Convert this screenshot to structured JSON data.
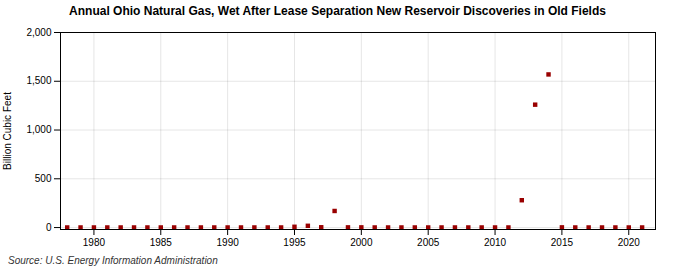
{
  "chart_data": {
    "type": "scatter",
    "title": "Annual Ohio Natural Gas, Wet After Lease Separation New Reservoir Discoveries in Old Fields",
    "ylabel": "Billion Cubic Feet",
    "caption": "Source: U.S. Energy Information Administration",
    "color": "#990000",
    "marker": "square",
    "grid": true,
    "xlim": [
      1977.5,
      2022
    ],
    "ylim": [
      -20,
      2000
    ],
    "xticks": [
      {
        "value": 1980,
        "label": "1980"
      },
      {
        "value": 1985,
        "label": "1985"
      },
      {
        "value": 1990,
        "label": "1990"
      },
      {
        "value": 1995,
        "label": "1995"
      },
      {
        "value": 2000,
        "label": "2000"
      },
      {
        "value": 2005,
        "label": "2005"
      },
      {
        "value": 2010,
        "label": "2010"
      },
      {
        "value": 2015,
        "label": "2015"
      },
      {
        "value": 2020,
        "label": "2020"
      }
    ],
    "yticks": [
      0,
      500,
      {
        "value": 1000,
        "label": "1,000"
      },
      {
        "value": 1500,
        "label": "1,500"
      },
      {
        "value": 2000,
        "label": "2,000"
      }
    ],
    "x": [
      1978,
      1979,
      1980,
      1981,
      1982,
      1983,
      1984,
      1985,
      1986,
      1987,
      1988,
      1989,
      1990,
      1991,
      1992,
      1993,
      1994,
      1995,
      1996,
      1997,
      1998,
      1999,
      2000,
      2001,
      2002,
      2003,
      2004,
      2005,
      2006,
      2007,
      2008,
      2009,
      2010,
      2011,
      2012,
      2013,
      2014,
      2015,
      2016,
      2017,
      2018,
      2019,
      2020,
      2021
    ],
    "values": [
      1,
      1,
      1,
      1,
      1,
      1,
      1,
      1,
      1,
      1,
      1,
      1,
      1,
      1,
      1,
      1,
      1,
      8,
      18,
      3,
      170,
      2,
      2,
      1,
      1,
      1,
      1,
      1,
      1,
      1,
      1,
      1,
      1,
      1,
      280,
      1260,
      1570,
      2,
      1,
      1,
      1,
      1,
      1,
      1
    ]
  }
}
